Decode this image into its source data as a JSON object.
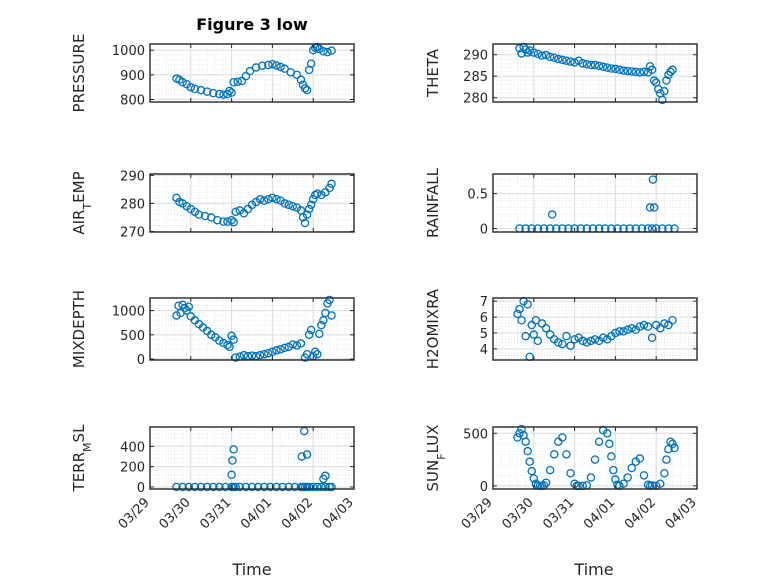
{
  "figure_title": "Figure 3 low",
  "x_axis": {
    "label": "Time",
    "ticks": [
      {
        "value": 0,
        "label": "03/29"
      },
      {
        "value": 1,
        "label": "03/30"
      },
      {
        "value": 2,
        "label": "03/31"
      },
      {
        "value": 3,
        "label": "04/01"
      },
      {
        "value": 4,
        "label": "04/02"
      },
      {
        "value": 5,
        "label": "04/03"
      }
    ]
  },
  "colors": {
    "marker": "#0072BD",
    "axes": "#262626",
    "grid": "#dcdcdc",
    "background": "#ffffff"
  },
  "chart_data": [
    {
      "type": "scatter",
      "ylabel": "PRESSURE",
      "ylim": [
        790,
        1025
      ],
      "yticks": [
        800,
        900,
        1000
      ],
      "grid": true,
      "x": [
        0.65,
        0.72,
        0.8,
        0.9,
        1.0,
        1.1,
        1.25,
        1.4,
        1.55,
        1.7,
        1.8,
        1.9,
        1.95,
        2.0,
        2.05,
        2.15,
        2.25,
        2.35,
        2.45,
        2.6,
        2.75,
        2.9,
        3.0,
        3.1,
        3.2,
        3.3,
        3.45,
        3.6,
        3.7,
        3.75,
        3.8,
        3.85,
        3.9,
        3.95,
        4.0,
        4.05,
        4.1,
        4.15,
        4.25,
        4.35,
        4.45
      ],
      "y": [
        885,
        880,
        870,
        862,
        850,
        843,
        838,
        832,
        826,
        822,
        820,
        822,
        835,
        828,
        870,
        872,
        875,
        895,
        915,
        930,
        937,
        940,
        943,
        938,
        932,
        925,
        910,
        900,
        880,
        860,
        845,
        838,
        920,
        945,
        1000,
        1010,
        1013,
        1005,
        995,
        992,
        998
      ]
    },
    {
      "type": "scatter",
      "ylabel": "THETA",
      "ylim": [
        279,
        292.5
      ],
      "yticks": [
        280,
        285,
        290
      ],
      "grid": true,
      "x": [
        0.65,
        0.7,
        0.75,
        0.8,
        0.85,
        0.9,
        1.0,
        1.1,
        1.2,
        1.3,
        1.4,
        1.5,
        1.6,
        1.7,
        1.8,
        1.9,
        2.0,
        2.1,
        2.2,
        2.3,
        2.4,
        2.5,
        2.6,
        2.7,
        2.8,
        2.9,
        3.0,
        3.1,
        3.2,
        3.3,
        3.4,
        3.5,
        3.6,
        3.7,
        3.8,
        3.85,
        3.9,
        3.95,
        4.0,
        4.05,
        4.1,
        4.15,
        4.2,
        4.25,
        4.3,
        4.35,
        4.4
      ],
      "y": [
        291.5,
        290.3,
        291.8,
        291.2,
        290.5,
        291.0,
        290.5,
        290.2,
        289.8,
        289.9,
        289.5,
        289.3,
        289.0,
        288.8,
        288.6,
        288.4,
        288.2,
        288.6,
        288.0,
        287.8,
        287.6,
        287.6,
        287.4,
        287.2,
        287.0,
        286.8,
        286.7,
        286.5,
        286.3,
        286.2,
        286.1,
        286.0,
        285.9,
        286.0,
        285.9,
        287.3,
        286.5,
        284.0,
        283.5,
        282.0,
        281.0,
        279.5,
        281.5,
        284.0,
        285.3,
        286.0,
        286.5
      ]
    },
    {
      "type": "scatter",
      "ylabel": "AIR_TEMP",
      "ylim": [
        269.8,
        290.5
      ],
      "yticks": [
        270,
        280,
        290
      ],
      "grid": true,
      "x": [
        0.65,
        0.72,
        0.8,
        0.9,
        1.0,
        1.1,
        1.2,
        1.35,
        1.5,
        1.65,
        1.8,
        1.9,
        2.0,
        2.05,
        2.1,
        2.2,
        2.3,
        2.4,
        2.5,
        2.6,
        2.7,
        2.8,
        2.9,
        3.0,
        3.1,
        3.2,
        3.3,
        3.4,
        3.5,
        3.6,
        3.7,
        3.75,
        3.8,
        3.85,
        3.9,
        3.95,
        4.0,
        4.05,
        4.1,
        4.2,
        4.3,
        4.4,
        4.45
      ],
      "y": [
        282,
        280.5,
        280,
        279,
        278,
        277,
        276,
        275.5,
        275,
        274,
        273.5,
        273.5,
        274,
        273.3,
        277,
        277.5,
        276.5,
        278,
        279.5,
        280.5,
        281.5,
        281,
        281.5,
        282,
        281.5,
        281,
        280,
        279.5,
        279,
        278.5,
        277.5,
        275,
        273,
        276,
        278,
        279.5,
        281.5,
        283,
        283.5,
        283,
        284,
        285.5,
        287
      ]
    },
    {
      "type": "scatter",
      "ylabel": "RAINFALL",
      "ylim": [
        -0.05,
        0.78
      ],
      "yticks": [
        0,
        0.5
      ],
      "grid": true,
      "x": [
        0.65,
        0.8,
        0.95,
        1.1,
        1.25,
        1.4,
        1.55,
        1.7,
        1.85,
        2.0,
        2.15,
        2.3,
        2.45,
        2.6,
        2.75,
        2.9,
        3.05,
        3.2,
        3.35,
        3.5,
        3.65,
        3.8,
        3.9,
        4.0,
        4.15,
        4.3,
        4.45,
        1.45,
        3.85,
        3.95,
        3.92
      ],
      "y": [
        0,
        0,
        0,
        0,
        0,
        0,
        0,
        0,
        0,
        0,
        0,
        0,
        0,
        0,
        0,
        0,
        0,
        0,
        0,
        0,
        0,
        0,
        0,
        0,
        0,
        0,
        0,
        0.2,
        0.3,
        0.3,
        0.7
      ]
    },
    {
      "type": "scatter",
      "ylabel": "MIXDEPTH",
      "ylim": [
        -20,
        1260
      ],
      "yticks": [
        0,
        500,
        1000
      ],
      "grid": true,
      "x": [
        0.65,
        0.7,
        0.75,
        0.8,
        0.85,
        0.9,
        0.95,
        1.0,
        1.1,
        1.2,
        1.3,
        1.4,
        1.5,
        1.6,
        1.7,
        1.8,
        1.9,
        1.95,
        2.0,
        2.05,
        2.1,
        2.2,
        2.3,
        2.4,
        2.5,
        2.6,
        2.7,
        2.8,
        2.9,
        3.0,
        3.1,
        3.2,
        3.3,
        3.4,
        3.5,
        3.6,
        3.7,
        3.8,
        3.85,
        3.9,
        3.95,
        4.0,
        4.05,
        4.1,
        4.15,
        4.2,
        4.25,
        4.3,
        4.35,
        4.4,
        4.45
      ],
      "y": [
        900,
        1100,
        950,
        1120,
        1050,
        1000,
        1080,
        880,
        800,
        720,
        650,
        580,
        500,
        450,
        380,
        330,
        290,
        250,
        480,
        400,
        30,
        50,
        80,
        60,
        70,
        60,
        80,
        100,
        120,
        150,
        180,
        200,
        230,
        250,
        300,
        280,
        320,
        30,
        100,
        500,
        600,
        60,
        150,
        100,
        520,
        700,
        800,
        950,
        1150,
        1220,
        900
      ]
    },
    {
      "type": "scatter",
      "ylabel": "H2OMIXRA",
      "ylim": [
        3.3,
        7.2
      ],
      "yticks": [
        4,
        5,
        6,
        7
      ],
      "grid": true,
      "x": [
        0.6,
        0.65,
        0.7,
        0.75,
        0.8,
        0.85,
        0.9,
        0.95,
        1.0,
        1.05,
        1.1,
        1.2,
        1.3,
        1.4,
        1.5,
        1.6,
        1.7,
        1.8,
        1.9,
        2.0,
        2.1,
        2.2,
        2.3,
        2.4,
        2.5,
        2.6,
        2.7,
        2.8,
        2.9,
        3.0,
        3.1,
        3.2,
        3.3,
        3.4,
        3.5,
        3.6,
        3.7,
        3.8,
        3.9,
        4.0,
        4.1,
        4.2,
        4.3,
        4.4
      ],
      "y": [
        6.2,
        6.5,
        5.8,
        7.0,
        4.8,
        6.8,
        3.5,
        5.5,
        4.9,
        5.8,
        4.5,
        5.6,
        5.3,
        4.9,
        4.6,
        4.4,
        4.3,
        4.8,
        4.2,
        4.6,
        4.7,
        4.5,
        4.4,
        4.5,
        4.6,
        4.5,
        4.7,
        4.6,
        4.8,
        5.0,
        5.1,
        5.1,
        5.2,
        5.3,
        5.2,
        5.4,
        5.5,
        5.4,
        4.7,
        5.5,
        5.3,
        5.6,
        5.5,
        5.8
      ]
    },
    {
      "type": "scatter",
      "ylabel": "TERR_MSL",
      "ylim": [
        -20,
        590
      ],
      "yticks": [
        0,
        200,
        400
      ],
      "grid": true,
      "x": [
        0.65,
        0.8,
        0.95,
        1.1,
        1.25,
        1.4,
        1.55,
        1.7,
        1.85,
        2.0,
        2.05,
        2.1,
        2.2,
        2.35,
        2.5,
        2.65,
        2.8,
        2.95,
        3.1,
        3.25,
        3.4,
        3.55,
        3.7,
        3.75,
        3.8,
        3.85,
        3.9,
        4.0,
        4.1,
        4.2,
        4.3,
        4.4,
        4.45,
        2.0,
        2.02,
        2.05,
        3.72,
        3.78,
        3.85,
        4.25,
        4.3
      ],
      "y": [
        0,
        0,
        0,
        0,
        0,
        0,
        0,
        0,
        0,
        0,
        0,
        0,
        0,
        0,
        0,
        0,
        0,
        0,
        0,
        0,
        0,
        0,
        0,
        0,
        0,
        0,
        0,
        0,
        0,
        0,
        0,
        0,
        0,
        120,
        260,
        370,
        300,
        550,
        320,
        80,
        110
      ]
    },
    {
      "type": "scatter",
      "ylabel": "SUN_FLUX",
      "ylim": [
        -30,
        560
      ],
      "yticks": [
        0,
        500
      ],
      "grid": true,
      "x": [
        0.6,
        0.65,
        0.7,
        0.75,
        0.8,
        0.85,
        0.9,
        0.95,
        1.0,
        1.05,
        1.1,
        1.15,
        1.2,
        1.25,
        1.3,
        1.4,
        1.5,
        1.6,
        1.7,
        1.8,
        1.9,
        2.0,
        2.05,
        2.1,
        2.2,
        2.3,
        2.4,
        2.5,
        2.6,
        2.7,
        2.8,
        2.85,
        2.9,
        2.95,
        3.0,
        3.05,
        3.1,
        3.2,
        3.3,
        3.4,
        3.5,
        3.6,
        3.7,
        3.8,
        3.85,
        3.9,
        4.0,
        4.1,
        4.2,
        4.25,
        4.3,
        4.35,
        4.4,
        4.45
      ],
      "y": [
        460,
        500,
        540,
        480,
        420,
        330,
        230,
        140,
        70,
        20,
        5,
        0,
        0,
        5,
        30,
        150,
        300,
        420,
        460,
        300,
        120,
        20,
        0,
        0,
        0,
        5,
        80,
        250,
        420,
        530,
        500,
        400,
        280,
        150,
        60,
        10,
        0,
        20,
        80,
        170,
        230,
        260,
        100,
        10,
        0,
        5,
        0,
        20,
        120,
        250,
        350,
        420,
        400,
        360
      ]
    }
  ]
}
